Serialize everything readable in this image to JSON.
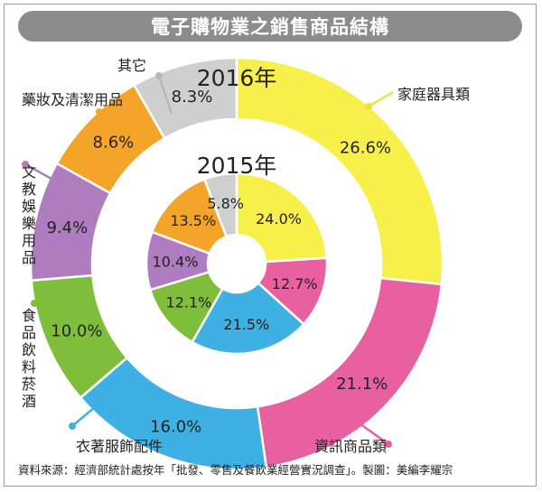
{
  "chart_data": {
    "type": "donut",
    "title": "電子購物業之銷售商品結構",
    "categories": [
      "家庭器具類",
      "資訊商品類",
      "衣著服飾配件",
      "食品飲料菸酒",
      "文教娛樂用品",
      "藥妝及清潔用品",
      "其它"
    ],
    "series": [
      {
        "name": "2016年",
        "ring": "outer",
        "values": [
          26.6,
          21.1,
          16.0,
          10.0,
          9.4,
          8.6,
          8.3
        ]
      },
      {
        "name": "2015年",
        "ring": "inner",
        "values": [
          24.0,
          12.7,
          21.5,
          12.1,
          10.4,
          13.5,
          5.8
        ]
      }
    ],
    "unit": "%",
    "colors": [
      "#f7f04a",
      "#e8609f",
      "#3fb0e4",
      "#7fbe3b",
      "#b07cc0",
      "#f3a429",
      "#cfcfcf"
    ]
  },
  "source_note": "資料來源：經濟部統計處按年「批發、零售及餐飲業經營實況調查」。製圖：美編李耀宗"
}
